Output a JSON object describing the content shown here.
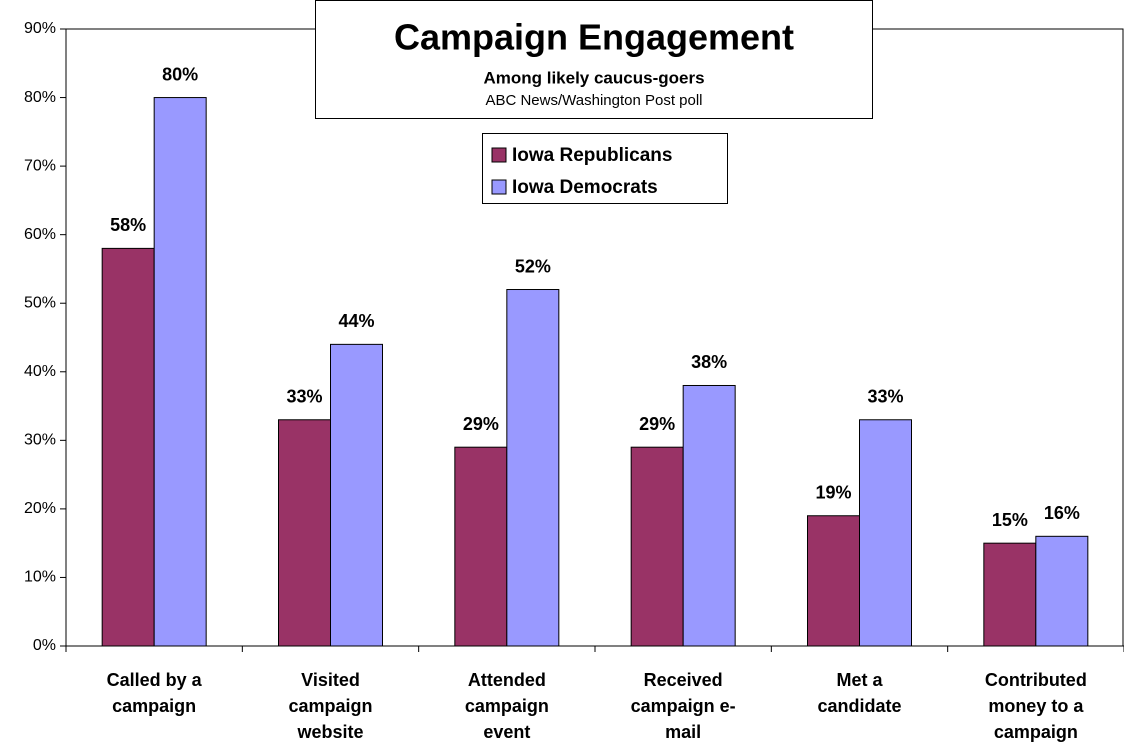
{
  "chart_data": {
    "type": "bar",
    "title": "Campaign Engagement",
    "subtitle": "Among likely caucus-goers",
    "source": "ABC News/Washington Post poll",
    "categories": [
      "Called by a campaign",
      "Visited campaign website",
      "Attended campaign event",
      "Received campaign e-mail",
      "Met a candidate",
      "Contributed money to a campaign"
    ],
    "series": [
      {
        "name": "Iowa Republicans",
        "color": "#993366",
        "values": [
          58,
          33,
          29,
          29,
          19,
          15
        ],
        "value_labels": [
          "58%",
          "33%",
          "29%",
          "29%",
          "19%",
          "15%"
        ]
      },
      {
        "name": "Iowa Democrats",
        "color": "#9999ff",
        "values": [
          80,
          44,
          52,
          38,
          33,
          16
        ],
        "value_labels": [
          "80%",
          "44%",
          "52%",
          "38%",
          "33%",
          "16%"
        ]
      }
    ],
    "ylim": [
      0,
      90
    ],
    "yticks": [
      {
        "value": 0,
        "label": "0%"
      },
      {
        "value": 10,
        "label": "10%"
      },
      {
        "value": 20,
        "label": "20%"
      },
      {
        "value": 30,
        "label": "30%"
      },
      {
        "value": 40,
        "label": "40%"
      },
      {
        "value": 50,
        "label": "50%"
      },
      {
        "value": 60,
        "label": "60%"
      },
      {
        "value": 70,
        "label": "70%"
      },
      {
        "value": 80,
        "label": "80%"
      },
      {
        "value": 90,
        "label": "90%"
      }
    ],
    "grid": false,
    "legend": "top"
  }
}
